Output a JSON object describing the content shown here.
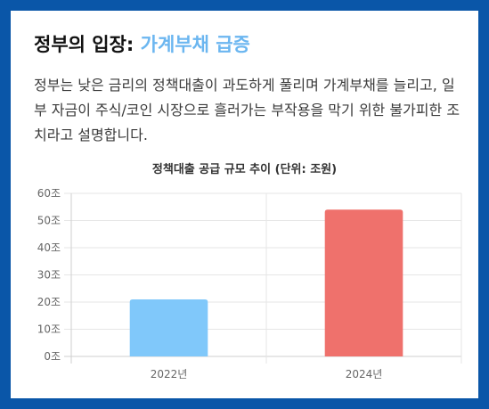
{
  "heading": {
    "prefix": "정부의 입장: ",
    "accent": "가계부채 급증"
  },
  "body_text": "정부는 낮은 금리의 정책대출이 과도하게 풀리며 가계부채를 늘리고, 일부 자금이 주식/코인 시장으로 흘러가는 부작용을 막기 위한 불가피한 조치라고 설명합니다.",
  "colors": {
    "frame": "#0a56a8",
    "accent": "#6bb6f0",
    "bar_2022": "#80c8fa",
    "bar_2024": "#ef716c"
  },
  "chart_data": {
    "type": "bar",
    "title": "정책대출 공급 규모 추이 (단위: 조원)",
    "categories": [
      "2022년",
      "2024년"
    ],
    "values": [
      21,
      54
    ],
    "ylim": [
      0,
      60
    ],
    "yticks": [
      "0조",
      "10조",
      "20조",
      "30조",
      "40조",
      "50조",
      "60조"
    ],
    "grid": true,
    "legend": "none"
  }
}
